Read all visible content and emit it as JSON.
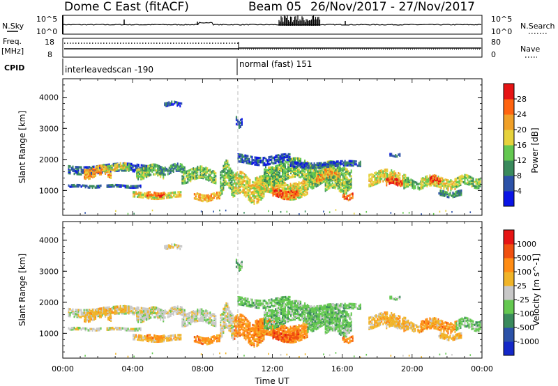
{
  "header": {
    "radar": "Dome C East (fitACF)",
    "beam": "Beam 05",
    "dates": "26/Nov/2017 - 27/Nov/2017"
  },
  "status_panels": {
    "nsky_label": "N.Sky",
    "nsearch_label": "N.Search",
    "nsky_ticks": [
      "10^5",
      "10^0"
    ],
    "nsearch_ticks": [
      "10^5",
      "10^0"
    ],
    "freq_label": "Freq.",
    "freq_unit": "[MHz]",
    "freq_ticks": [
      "18",
      "8"
    ],
    "nave_label": "Nave",
    "nave_ticks": [
      "80",
      "0"
    ],
    "cpid_label": "CPID",
    "cpid_segments": [
      {
        "label": "interleavedscan -190",
        "start_hour": 0
      },
      {
        "label": "normal (fast) 151",
        "start_hour": 10
      }
    ]
  },
  "chart_data": [
    {
      "type": "heatmap",
      "name": "power-panel",
      "ylabel": "Slant Range [km]",
      "xlabel": "",
      "xlim": [
        0,
        24
      ],
      "ylim": [
        200,
        4600
      ],
      "yticks": [
        1000,
        2000,
        3000,
        4000
      ],
      "colorbar": {
        "label": "Power [dB]",
        "ticks": [
          "28",
          "24",
          "20",
          "16",
          "12",
          "8",
          "4"
        ],
        "colors": [
          "#0a14e6",
          "#2c52a8",
          "#3a8a5c",
          "#64c850",
          "#e6d23c",
          "#f0a028",
          "#ff6410",
          "#e61414"
        ]
      }
    },
    {
      "type": "heatmap",
      "name": "velocity-panel",
      "ylabel": "Slant Range [km]",
      "xlabel": "Time UT",
      "xlim": [
        0,
        24
      ],
      "ylim": [
        200,
        4600
      ],
      "yticks": [
        1000,
        2000,
        3000,
        4000
      ],
      "xticks": [
        "00:00",
        "04:00",
        "08:00",
        "12:00",
        "16:00",
        "20:00",
        "00:00"
      ],
      "colorbar": {
        "label": "Velocity [m s^-1]",
        "ticks": [
          "1000",
          "500",
          "100",
          "25",
          "-25",
          "-100",
          "-500",
          "-1000"
        ],
        "colors": [
          "#1428c8",
          "#2c52a8",
          "#3a8a5c",
          "#64c850",
          "#c8c8c8",
          "#f0b428",
          "#ff8c14",
          "#f05010",
          "#e61414"
        ]
      }
    }
  ]
}
